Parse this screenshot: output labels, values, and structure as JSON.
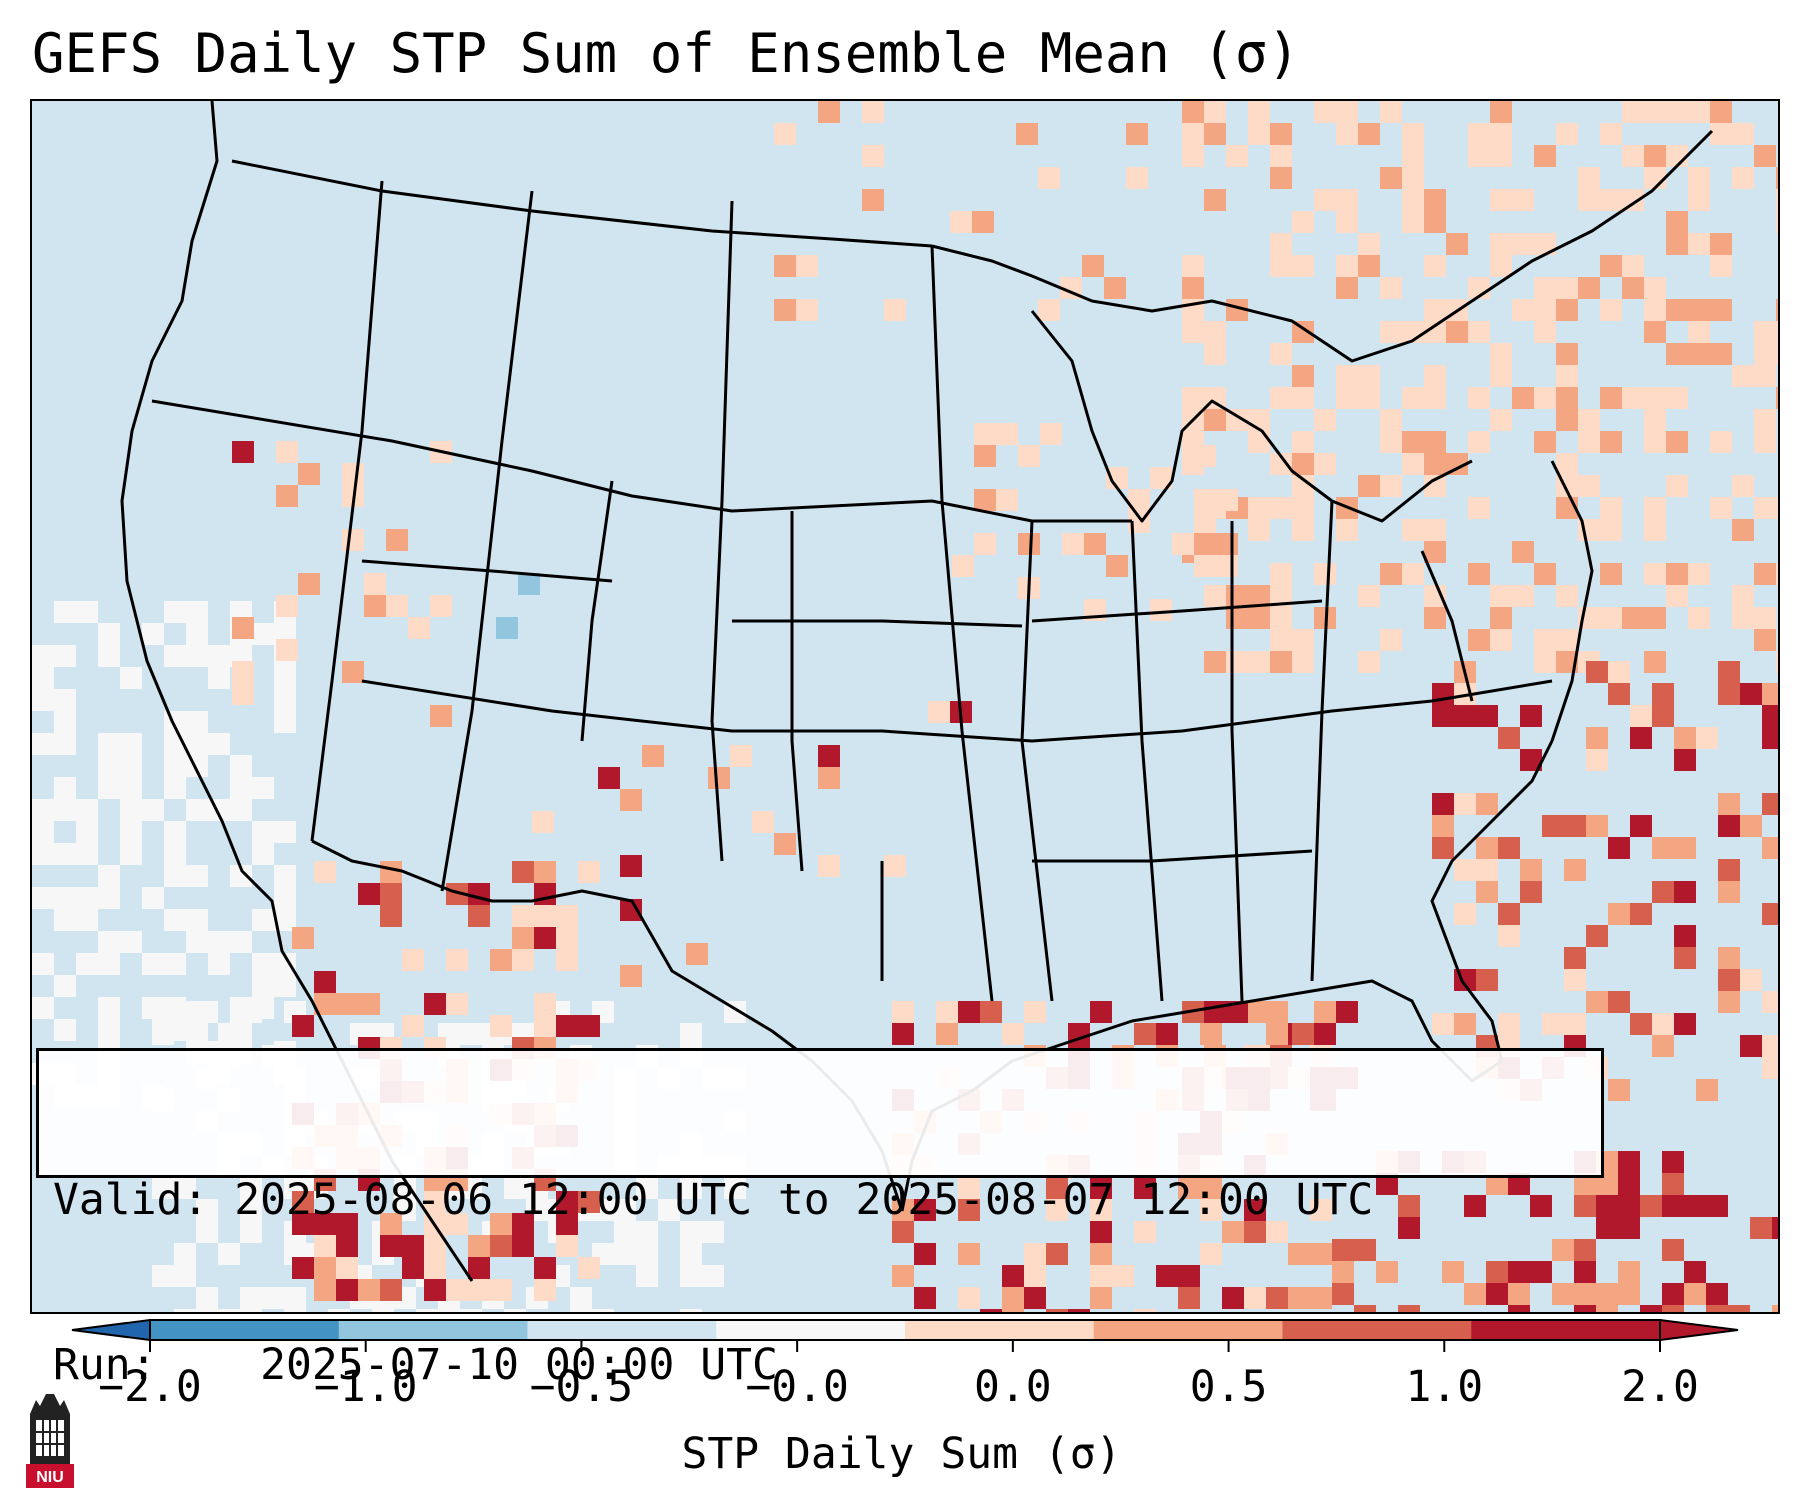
{
  "title": "GEFS Daily STP Sum of Ensemble Mean (σ)",
  "info": {
    "valid_label": "Valid:",
    "valid_value": "2025-08-06 12:00 UTC to 2025-08-07 12:00 UTC",
    "run_label": "Run:",
    "run_value": "2025-07-10 00:00 UTC"
  },
  "colorbar": {
    "label": "STP Daily Sum (σ)",
    "ticks": [
      "−2.0",
      "−1.0",
      "−0.5",
      "−0.0",
      "0.0",
      "0.5",
      "1.0",
      "2.0"
    ],
    "segment_colors": [
      "#4393c3",
      "#92c5de",
      "#d1e5f0",
      "#f7f7f7",
      "#fddbc7",
      "#f4a582",
      "#d6604d",
      "#b2182b"
    ],
    "under_color": "#2166ac",
    "over_color": "#b2182b"
  },
  "logo": {
    "text": "NIU"
  },
  "colors": {
    "ocean_land_base": "#d1e5f0",
    "white_zone": "#f7f7f7",
    "light_red": "#fddbc7",
    "mid_red": "#f4a582",
    "red": "#d6604d",
    "dark_red": "#b2182b",
    "blue": "#92c5de"
  }
}
